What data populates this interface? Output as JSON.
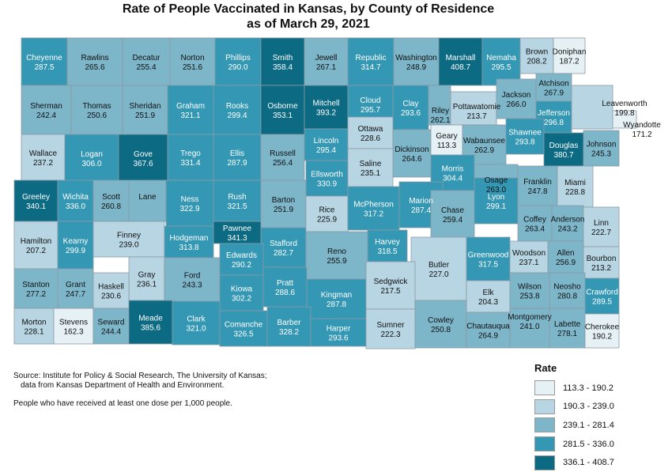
{
  "map_title": {
    "line1": "Rate of People Vaccinated in Kansas, by County of Residence",
    "line2": "as of March 29, 2021"
  },
  "source": {
    "line1": "Source: Institute for Policy & Social Research, The University of Kansas;",
    "line2": "data from Kansas Department of Health and Environment."
  },
  "note": "People who have received at least one dose per 1,000 people.",
  "legend": {
    "title": "Rate",
    "classes": [
      {
        "label": "113.3 - 190.2",
        "color": "#e6f1f5"
      },
      {
        "label": "190.3 - 239.0",
        "color": "#b7d5e2"
      },
      {
        "label": "239.1 - 281.4",
        "color": "#7db5c9"
      },
      {
        "label": "281.5 - 336.0",
        "color": "#3497b3"
      },
      {
        "label": "336.1 - 408.7",
        "color": "#0c6a82"
      }
    ]
  },
  "counties": [
    {
      "name": "Cheyenne",
      "rate": "287.5"
    },
    {
      "name": "Rawlins",
      "rate": "265.6"
    },
    {
      "name": "Decatur",
      "rate": "255.4"
    },
    {
      "name": "Norton",
      "rate": "251.6"
    },
    {
      "name": "Phillips",
      "rate": "290.0"
    },
    {
      "name": "Smith",
      "rate": "358.4"
    },
    {
      "name": "Jewell",
      "rate": "267.1"
    },
    {
      "name": "Republic",
      "rate": "314.7"
    },
    {
      "name": "Washington",
      "rate": "248.9"
    },
    {
      "name": "Marshall",
      "rate": "408.7"
    },
    {
      "name": "Nemaha",
      "rate": "295.5"
    },
    {
      "name": "Brown",
      "rate": "208.2"
    },
    {
      "name": "Doniphan",
      "rate": "187.2"
    },
    {
      "name": "Sherman",
      "rate": "242.4"
    },
    {
      "name": "Thomas",
      "rate": "250.6"
    },
    {
      "name": "Sheridan",
      "rate": "251.9"
    },
    {
      "name": "Graham",
      "rate": "321.1"
    },
    {
      "name": "Rooks",
      "rate": "299.4"
    },
    {
      "name": "Osborne",
      "rate": "353.1"
    },
    {
      "name": "Mitchell",
      "rate": "393.2"
    },
    {
      "name": "Cloud",
      "rate": "295.7"
    },
    {
      "name": "Clay",
      "rate": "293.6"
    },
    {
      "name": "Riley",
      "rate": "262.1"
    },
    {
      "name": "Pottawatomie",
      "rate": "213.7"
    },
    {
      "name": "Jackson",
      "rate": "266.0"
    },
    {
      "name": "Atchison",
      "rate": "267.9"
    },
    {
      "name": "Jefferson",
      "rate": "296.8"
    },
    {
      "name": "Leavenworth",
      "rate": "199.8"
    },
    {
      "name": "Wyandotte",
      "rate": "171.2"
    },
    {
      "name": "Wallace",
      "rate": "237.2"
    },
    {
      "name": "Logan",
      "rate": "306.0"
    },
    {
      "name": "Gove",
      "rate": "367.6"
    },
    {
      "name": "Trego",
      "rate": "331.4"
    },
    {
      "name": "Ellis",
      "rate": "287.9"
    },
    {
      "name": "Russell",
      "rate": "256.4"
    },
    {
      "name": "Lincoln",
      "rate": "295.4"
    },
    {
      "name": "Ottawa",
      "rate": "228.6"
    },
    {
      "name": "Dickinson",
      "rate": "264.6"
    },
    {
      "name": "Geary",
      "rate": "113.3"
    },
    {
      "name": "Wabaunsee",
      "rate": "262.9"
    },
    {
      "name": "Shawnee",
      "rate": "293.8"
    },
    {
      "name": "Douglas",
      "rate": "380.7"
    },
    {
      "name": "Johnson",
      "rate": "245.3"
    },
    {
      "name": "Greeley",
      "rate": "340.1"
    },
    {
      "name": "Wichita",
      "rate": "336.0"
    },
    {
      "name": "Scott",
      "rate": "260.8"
    },
    {
      "name": "Lane",
      "rate": ""
    },
    {
      "name": "Ness",
      "rate": "322.9"
    },
    {
      "name": "Rush",
      "rate": "321.5"
    },
    {
      "name": "Barton",
      "rate": "251.9"
    },
    {
      "name": "Ellsworth",
      "rate": "330.9"
    },
    {
      "name": "Saline",
      "rate": "235.1"
    },
    {
      "name": "Morris",
      "rate": "304.4"
    },
    {
      "name": "Osage",
      "rate": "263.0"
    },
    {
      "name": "Franklin",
      "rate": "247.8"
    },
    {
      "name": "Miami",
      "rate": "228.8"
    },
    {
      "name": "Hamilton",
      "rate": "207.2"
    },
    {
      "name": "Kearny",
      "rate": "299.9"
    },
    {
      "name": "Finney",
      "rate": "239.0"
    },
    {
      "name": "Hodgeman",
      "rate": "313.8"
    },
    {
      "name": "Pawnee",
      "rate": "341.3"
    },
    {
      "name": "Stafford",
      "rate": "282.7"
    },
    {
      "name": "Rice",
      "rate": "225.9"
    },
    {
      "name": "McPherson",
      "rate": "317.2"
    },
    {
      "name": "Marion",
      "rate": "287.4"
    },
    {
      "name": "Chase",
      "rate": "259.4"
    },
    {
      "name": "Lyon",
      "rate": "299.1"
    },
    {
      "name": "Coffey",
      "rate": "263.4"
    },
    {
      "name": "Anderson",
      "rate": "243.2"
    },
    {
      "name": "Linn",
      "rate": "222.7"
    },
    {
      "name": "Gray",
      "rate": "236.1"
    },
    {
      "name": "Ford",
      "rate": "243.3"
    },
    {
      "name": "Edwards",
      "rate": "290.2"
    },
    {
      "name": "Reno",
      "rate": "255.9"
    },
    {
      "name": "Harvey",
      "rate": "318.5"
    },
    {
      "name": "Butler",
      "rate": "227.0"
    },
    {
      "name": "Greenwood",
      "rate": "317.5"
    },
    {
      "name": "Woodson",
      "rate": "237.1"
    },
    {
      "name": "Allen",
      "rate": "256.9"
    },
    {
      "name": "Bourbon",
      "rate": "213.2"
    },
    {
      "name": "Stanton",
      "rate": "277.2"
    },
    {
      "name": "Grant",
      "rate": "247.7"
    },
    {
      "name": "Haskell",
      "rate": "230.6"
    },
    {
      "name": "Kiowa",
      "rate": "302.2"
    },
    {
      "name": "Pratt",
      "rate": "288.6"
    },
    {
      "name": "Kingman",
      "rate": "287.8"
    },
    {
      "name": "Sedgwick",
      "rate": "217.5"
    },
    {
      "name": "Elk",
      "rate": "204.3"
    },
    {
      "name": "Wilson",
      "rate": "253.8"
    },
    {
      "name": "Neosho",
      "rate": "280.8"
    },
    {
      "name": "Crawford",
      "rate": "289.5"
    },
    {
      "name": "Morton",
      "rate": "228.1"
    },
    {
      "name": "Stevens",
      "rate": "162.3"
    },
    {
      "name": "Seward",
      "rate": "244.4"
    },
    {
      "name": "Meade",
      "rate": "385.6"
    },
    {
      "name": "Clark",
      "rate": "321.0"
    },
    {
      "name": "Comanche",
      "rate": "326.5"
    },
    {
      "name": "Barber",
      "rate": "328.2"
    },
    {
      "name": "Harper",
      "rate": "293.6"
    },
    {
      "name": "Sumner",
      "rate": "222.3"
    },
    {
      "name": "Cowley",
      "rate": "250.8"
    },
    {
      "name": "Chautauqua",
      "rate": "264.9"
    },
    {
      "name": "Montgomery",
      "rate": "241.0"
    },
    {
      "name": "Labette",
      "rate": "278.1"
    },
    {
      "name": "Cherokee",
      "rate": "190.2"
    }
  ]
}
